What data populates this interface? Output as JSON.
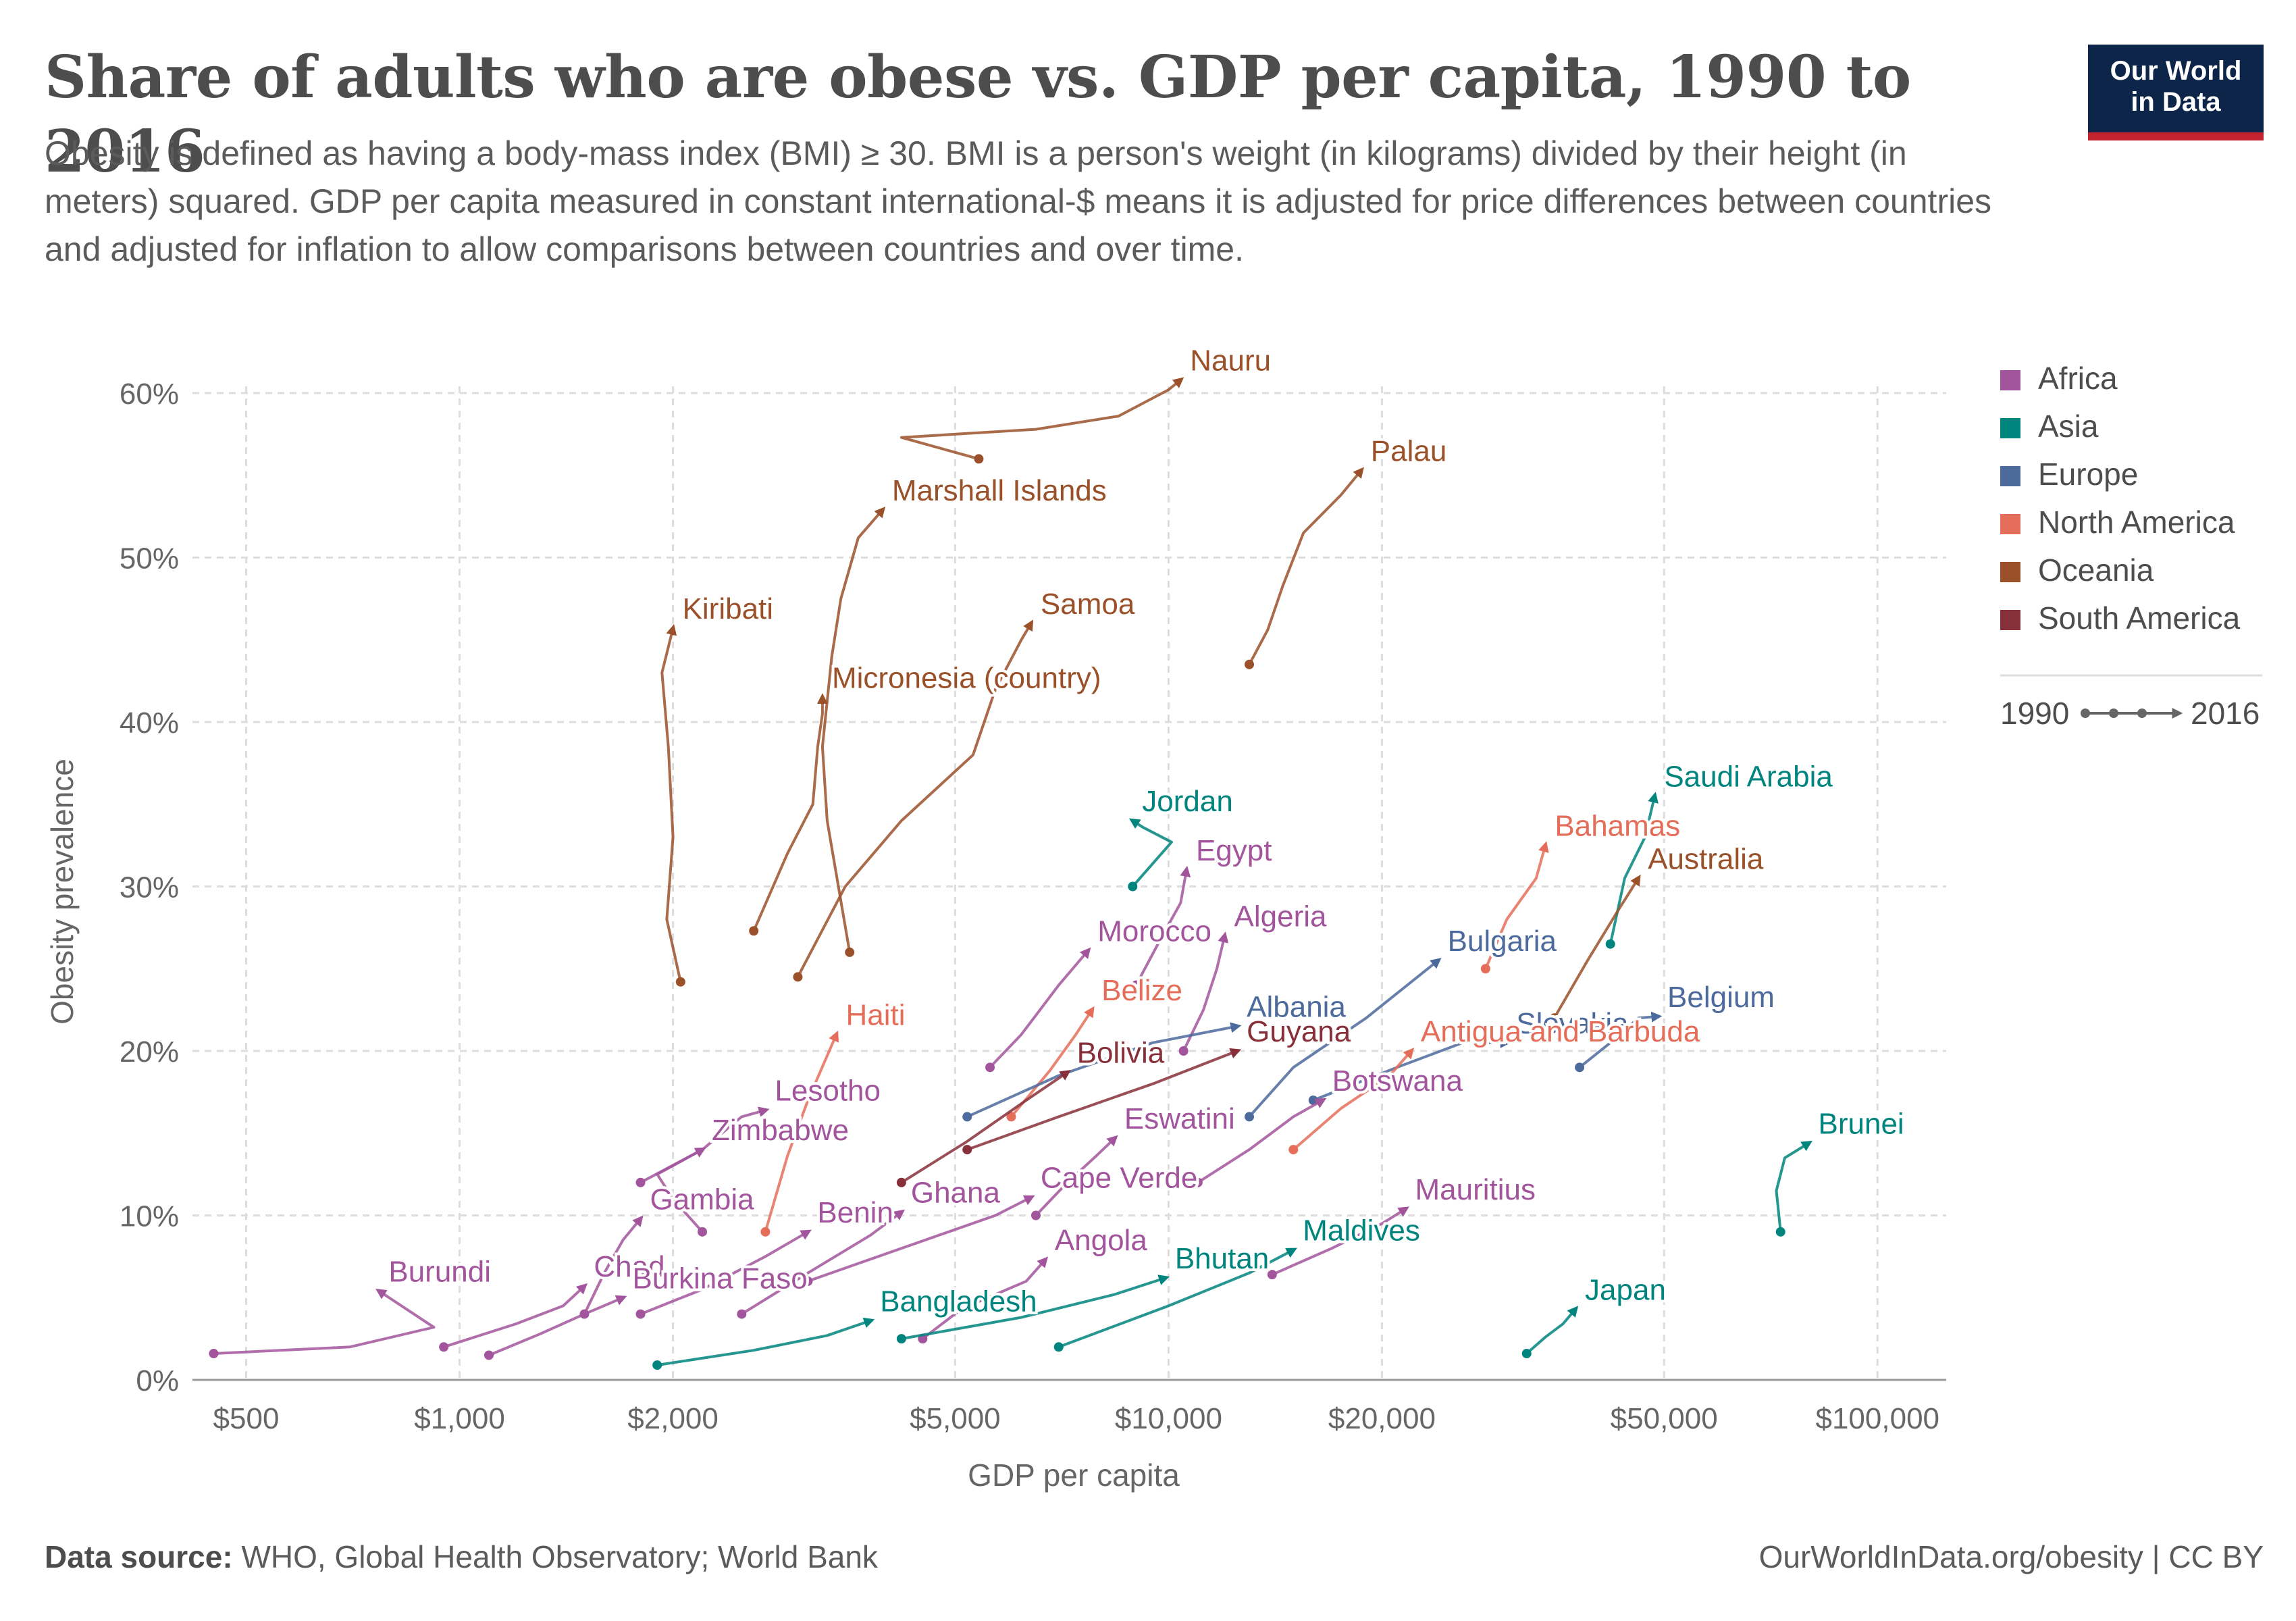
{
  "header": {
    "title": "Share of adults who are obese vs. GDP per capita, 1990 to 2016",
    "subtitle": "Obesity is defined as having a body-mass index (BMI) ≥ 30. BMI is a person's weight (in kilograms) divided by their height (in meters) squared. GDP per capita measured in constant international-$ means it is adjusted for price differences between countries and adjusted for inflation to allow comparisons between countries and over time."
  },
  "logo": {
    "line1": "Our World",
    "line2": "in Data"
  },
  "footer": {
    "source_label": "Data source:",
    "source_text": "WHO, Global Health Observatory; World Bank",
    "url": "OurWorldInData.org/obesity | CC BY"
  },
  "chart_data": {
    "type": "scatter",
    "subtype": "connected-scatter",
    "title": "Share of adults who are obese vs. GDP per capita, 1990 to 2016",
    "xlabel": "GDP per capita",
    "ylabel": "Obesity prevalence",
    "x_scale": "log",
    "xlim": [
      420,
      125000
    ],
    "ylim": [
      0,
      60
    ],
    "x_ticks": [
      {
        "value": 500,
        "label": "$500"
      },
      {
        "value": 1000,
        "label": "$1,000"
      },
      {
        "value": 2000,
        "label": "$2,000"
      },
      {
        "value": 5000,
        "label": "$5,000"
      },
      {
        "value": 10000,
        "label": "$10,000"
      },
      {
        "value": 20000,
        "label": "$20,000"
      },
      {
        "value": 50000,
        "label": "$50,000"
      },
      {
        "value": 100000,
        "label": "$100,000"
      }
    ],
    "y_ticks": [
      {
        "value": 0,
        "label": "0%"
      },
      {
        "value": 10,
        "label": "10%"
      },
      {
        "value": 20,
        "label": "20%"
      },
      {
        "value": 30,
        "label": "30%"
      },
      {
        "value": 40,
        "label": "40%"
      },
      {
        "value": 50,
        "label": "50%"
      },
      {
        "value": 60,
        "label": "60%"
      }
    ],
    "grid": true,
    "legend_position": "right",
    "legend": [
      {
        "name": "Africa",
        "color": "#a2559c"
      },
      {
        "name": "Asia",
        "color": "#00847e"
      },
      {
        "name": "Europe",
        "color": "#4c6a9c"
      },
      {
        "name": "North America",
        "color": "#e56e5a"
      },
      {
        "name": "Oceania",
        "color": "#9a5129"
      },
      {
        "name": "South America",
        "color": "#883039"
      }
    ],
    "time_legend": {
      "start": "1990",
      "end": "2016"
    },
    "series": [
      {
        "name": "Nauru",
        "region": "Oceania",
        "points": [
          [
            5400,
            56
          ],
          [
            4200,
            57.3
          ],
          [
            6500,
            57.8
          ],
          [
            8500,
            58.6
          ],
          [
            10000,
            60.2
          ],
          [
            10400,
            60.8
          ]
        ]
      },
      {
        "name": "Palau",
        "region": "Oceania",
        "points": [
          [
            13000,
            43.5
          ],
          [
            13800,
            45.6
          ],
          [
            14500,
            48.3
          ],
          [
            15500,
            51.5
          ],
          [
            17500,
            53.8
          ],
          [
            18700,
            55.3
          ]
        ]
      },
      {
        "name": "Marshall Islands",
        "region": "Oceania",
        "points": [
          [
            3550,
            26
          ],
          [
            3300,
            34
          ],
          [
            3250,
            38.5
          ],
          [
            3350,
            44
          ],
          [
            3450,
            47.5
          ],
          [
            3650,
            51.2
          ],
          [
            3950,
            52.9
          ]
        ]
      },
      {
        "name": "Kiribati",
        "region": "Oceania",
        "points": [
          [
            2050,
            24.2
          ],
          [
            1960,
            28
          ],
          [
            2000,
            33
          ],
          [
            1970,
            38.5
          ],
          [
            1930,
            43
          ],
          [
            2000,
            45.7
          ]
        ]
      },
      {
        "name": "Samoa",
        "region": "Oceania",
        "points": [
          [
            3000,
            24.5
          ],
          [
            3500,
            30
          ],
          [
            4200,
            34
          ],
          [
            5300,
            38
          ],
          [
            5700,
            42
          ],
          [
            6200,
            45
          ],
          [
            6400,
            46
          ]
        ]
      },
      {
        "name": "Micronesia (country)",
        "region": "Oceania",
        "points": [
          [
            2600,
            27.3
          ],
          [
            2900,
            32
          ],
          [
            3150,
            35
          ],
          [
            3200,
            38.5
          ],
          [
            3250,
            40.5
          ],
          [
            3250,
            41.5
          ]
        ]
      },
      {
        "name": "Jordan",
        "region": "Asia",
        "points": [
          [
            8900,
            30
          ],
          [
            10100,
            32.7
          ],
          [
            9200,
            33.6
          ],
          [
            8900,
            34
          ]
        ]
      },
      {
        "name": "Saudi Arabia",
        "region": "Asia",
        "points": [
          [
            42000,
            26.5
          ],
          [
            44000,
            30.5
          ],
          [
            47000,
            33
          ],
          [
            48500,
            35.5
          ]
        ]
      },
      {
        "name": "Egypt",
        "region": "Africa",
        "points": [
          [
            9000,
            24
          ],
          [
            9800,
            27
          ],
          [
            10400,
            29
          ],
          [
            10600,
            31
          ]
        ]
      },
      {
        "name": "Bahamas",
        "region": "North America",
        "points": [
          [
            28000,
            25
          ],
          [
            30000,
            28
          ],
          [
            33000,
            30.5
          ],
          [
            34000,
            32.5
          ]
        ]
      },
      {
        "name": "Australia",
        "region": "Oceania",
        "points": [
          [
            35000,
            22
          ],
          [
            39000,
            25.5
          ],
          [
            43000,
            28.5
          ],
          [
            46000,
            30.5
          ]
        ]
      },
      {
        "name": "Bulgaria",
        "region": "Europe",
        "points": [
          [
            13000,
            16
          ],
          [
            15000,
            19
          ],
          [
            19000,
            22
          ],
          [
            24000,
            25.5
          ]
        ]
      },
      {
        "name": "Algeria",
        "region": "Africa",
        "points": [
          [
            10500,
            20
          ],
          [
            11200,
            22.5
          ],
          [
            11700,
            25
          ],
          [
            12000,
            27
          ]
        ]
      },
      {
        "name": "Morocco",
        "region": "Africa",
        "points": [
          [
            5600,
            19
          ],
          [
            6200,
            21
          ],
          [
            7000,
            24
          ],
          [
            7700,
            26.1
          ]
        ]
      },
      {
        "name": "Belgium",
        "region": "Europe",
        "points": [
          [
            38000,
            19
          ],
          [
            42000,
            20.5
          ],
          [
            46000,
            22
          ],
          [
            49000,
            22.1
          ]
        ]
      },
      {
        "name": "Slovakia",
        "region": "Europe",
        "points": [
          [
            16000,
            17
          ],
          [
            21000,
            19
          ],
          [
            26000,
            20.5
          ],
          [
            30000,
            20.5
          ]
        ]
      },
      {
        "name": "Belize",
        "region": "North America",
        "points": [
          [
            6000,
            16
          ],
          [
            6800,
            18.8
          ],
          [
            7400,
            21
          ],
          [
            7800,
            22.5
          ]
        ]
      },
      {
        "name": "Albania",
        "region": "Europe",
        "points": [
          [
            5200,
            16
          ],
          [
            7000,
            18.5
          ],
          [
            9500,
            20.5
          ],
          [
            12500,
            21.5
          ]
        ]
      },
      {
        "name": "Haiti",
        "region": "North America",
        "points": [
          [
            2700,
            9
          ],
          [
            2900,
            13.6
          ],
          [
            3100,
            17
          ],
          [
            3400,
            21
          ]
        ]
      },
      {
        "name": "Antigua and Barbuda",
        "region": "North America",
        "points": [
          [
            15000,
            14
          ],
          [
            17500,
            16.5
          ],
          [
            20500,
            18.5
          ],
          [
            22000,
            20
          ]
        ]
      },
      {
        "name": "Guyana",
        "region": "South America",
        "points": [
          [
            5200,
            14
          ],
          [
            7000,
            16
          ],
          [
            9500,
            18
          ],
          [
            12500,
            20
          ]
        ]
      },
      {
        "name": "Bolivia",
        "region": "South America",
        "points": [
          [
            4200,
            12
          ],
          [
            5200,
            14.5
          ],
          [
            6300,
            17
          ],
          [
            7200,
            18.7
          ]
        ]
      },
      {
        "name": "Brunei",
        "region": "Asia",
        "points": [
          [
            73000,
            9
          ],
          [
            72000,
            11.5
          ],
          [
            74000,
            13.5
          ],
          [
            80000,
            14.4
          ]
        ]
      },
      {
        "name": "Botswana",
        "region": "Africa",
        "points": [
          [
            11000,
            12
          ],
          [
            13000,
            14
          ],
          [
            15000,
            16
          ],
          [
            16500,
            17
          ]
        ]
      },
      {
        "name": "Zimbabwe",
        "region": "Africa",
        "points": [
          [
            2200,
            9
          ],
          [
            2000,
            11
          ],
          [
            1900,
            12.5
          ],
          [
            2200,
            14
          ]
        ]
      },
      {
        "name": "Lesotho",
        "region": "Africa",
        "points": [
          [
            1800,
            12
          ],
          [
            2200,
            14
          ],
          [
            2500,
            16
          ],
          [
            2700,
            16.4
          ]
        ]
      },
      {
        "name": "Eswatini",
        "region": "Africa",
        "points": [
          [
            6500,
            10
          ],
          [
            7200,
            12
          ],
          [
            7900,
            13.6
          ],
          [
            8400,
            14.7
          ]
        ]
      },
      {
        "name": "Mauritius",
        "region": "Africa",
        "points": [
          [
            14000,
            6.4
          ],
          [
            17000,
            8
          ],
          [
            20000,
            9.5
          ],
          [
            21600,
            10.4
          ]
        ]
      },
      {
        "name": "Ghana",
        "region": "Africa",
        "points": [
          [
            2500,
            4
          ],
          [
            3100,
            6.5
          ],
          [
            3800,
            8.8
          ],
          [
            4200,
            10.2
          ]
        ]
      },
      {
        "name": "Cape Verde",
        "region": "Africa",
        "points": [
          [
            3100,
            6
          ],
          [
            4200,
            8
          ],
          [
            5700,
            10
          ],
          [
            6400,
            11.1
          ]
        ]
      },
      {
        "name": "Gambia",
        "region": "Africa",
        "points": [
          [
            1500,
            4
          ],
          [
            1600,
            6.5
          ],
          [
            1700,
            8.5
          ],
          [
            1800,
            9.8
          ]
        ]
      },
      {
        "name": "Benin",
        "region": "Africa",
        "points": [
          [
            1800,
            4
          ],
          [
            2200,
            5.5
          ],
          [
            2700,
            7.5
          ],
          [
            3100,
            9
          ]
        ]
      },
      {
        "name": "Maldives",
        "region": "Asia",
        "points": [
          [
            7000,
            2
          ],
          [
            10000,
            4.5
          ],
          [
            13000,
            6.5
          ],
          [
            15000,
            7.9
          ]
        ]
      },
      {
        "name": "Angola",
        "region": "Africa",
        "points": [
          [
            4500,
            2.5
          ],
          [
            5100,
            4.3
          ],
          [
            6300,
            6
          ],
          [
            6700,
            7.3
          ]
        ]
      },
      {
        "name": "Bhutan",
        "region": "Asia",
        "points": [
          [
            4200,
            2.5
          ],
          [
            6200,
            3.8
          ],
          [
            8400,
            5.2
          ],
          [
            9900,
            6.2
          ]
        ]
      },
      {
        "name": "Burundi",
        "region": "Africa",
        "points": [
          [
            450,
            1.6
          ],
          [
            700,
            2
          ],
          [
            920,
            3.2
          ],
          [
            770,
            5.4
          ]
        ]
      },
      {
        "name": "Chad",
        "region": "Africa",
        "points": [
          [
            950,
            2
          ],
          [
            1200,
            3.4
          ],
          [
            1400,
            4.5
          ],
          [
            1500,
            5.7
          ]
        ]
      },
      {
        "name": "Burkina Faso",
        "region": "Africa",
        "points": [
          [
            1100,
            1.5
          ],
          [
            1300,
            2.8
          ],
          [
            1500,
            4
          ],
          [
            1700,
            5
          ]
        ]
      },
      {
        "name": "Bangladesh",
        "region": "Asia",
        "points": [
          [
            1900,
            0.9
          ],
          [
            2600,
            1.8
          ],
          [
            3300,
            2.7
          ],
          [
            3800,
            3.6
          ]
        ]
      },
      {
        "name": "Japan",
        "region": "Asia",
        "points": [
          [
            32000,
            1.6
          ],
          [
            34000,
            2.6
          ],
          [
            36000,
            3.4
          ],
          [
            37500,
            4.3
          ]
        ]
      }
    ],
    "labels": [
      {
        "name": "Nauru",
        "region": "Oceania"
      },
      {
        "name": "Palau",
        "region": "Oceania"
      },
      {
        "name": "Marshall Islands",
        "region": "Oceania"
      },
      {
        "name": "Kiribati",
        "region": "Oceania"
      },
      {
        "name": "Samoa",
        "region": "Oceania"
      },
      {
        "name": "Micronesia (country)",
        "region": "Oceania"
      },
      {
        "name": "Jordan",
        "region": "Asia"
      },
      {
        "name": "Saudi Arabia",
        "region": "Asia"
      },
      {
        "name": "Egypt",
        "region": "Africa"
      },
      {
        "name": "Bahamas",
        "region": "North America"
      },
      {
        "name": "Australia",
        "region": "Oceania"
      },
      {
        "name": "Bulgaria",
        "region": "Europe"
      },
      {
        "name": "Algeria",
        "region": "Africa"
      },
      {
        "name": "Morocco",
        "region": "Africa"
      },
      {
        "name": "Belgium",
        "region": "Europe"
      },
      {
        "name": "Slovakia",
        "region": "Europe"
      },
      {
        "name": "Belize",
        "region": "North America"
      },
      {
        "name": "Albania",
        "region": "Europe"
      },
      {
        "name": "Haiti",
        "region": "North America"
      },
      {
        "name": "Antigua and Barbuda",
        "region": "North America"
      },
      {
        "name": "Guyana",
        "region": "South America"
      },
      {
        "name": "Bolivia",
        "region": "South America"
      },
      {
        "name": "Brunei",
        "region": "Asia"
      },
      {
        "name": "Botswana",
        "region": "Africa"
      },
      {
        "name": "Zimbabwe",
        "region": "Africa"
      },
      {
        "name": "Lesotho",
        "region": "Africa"
      },
      {
        "name": "Eswatini",
        "region": "Africa"
      },
      {
        "name": "Mauritius",
        "region": "Africa"
      },
      {
        "name": "Ghana",
        "region": "Africa"
      },
      {
        "name": "Cape Verde",
        "region": "Africa"
      },
      {
        "name": "Gambia",
        "region": "Africa"
      },
      {
        "name": "Benin",
        "region": "Africa"
      },
      {
        "name": "Maldives",
        "region": "Asia"
      },
      {
        "name": "Angola",
        "region": "Africa"
      },
      {
        "name": "Bhutan",
        "region": "Asia"
      },
      {
        "name": "Burundi",
        "region": "Africa"
      },
      {
        "name": "Chad",
        "region": "Africa"
      },
      {
        "name": "Burkina Faso",
        "region": "Africa"
      },
      {
        "name": "Bangladesh",
        "region": "Asia"
      },
      {
        "name": "Japan",
        "region": "Asia"
      }
    ]
  }
}
